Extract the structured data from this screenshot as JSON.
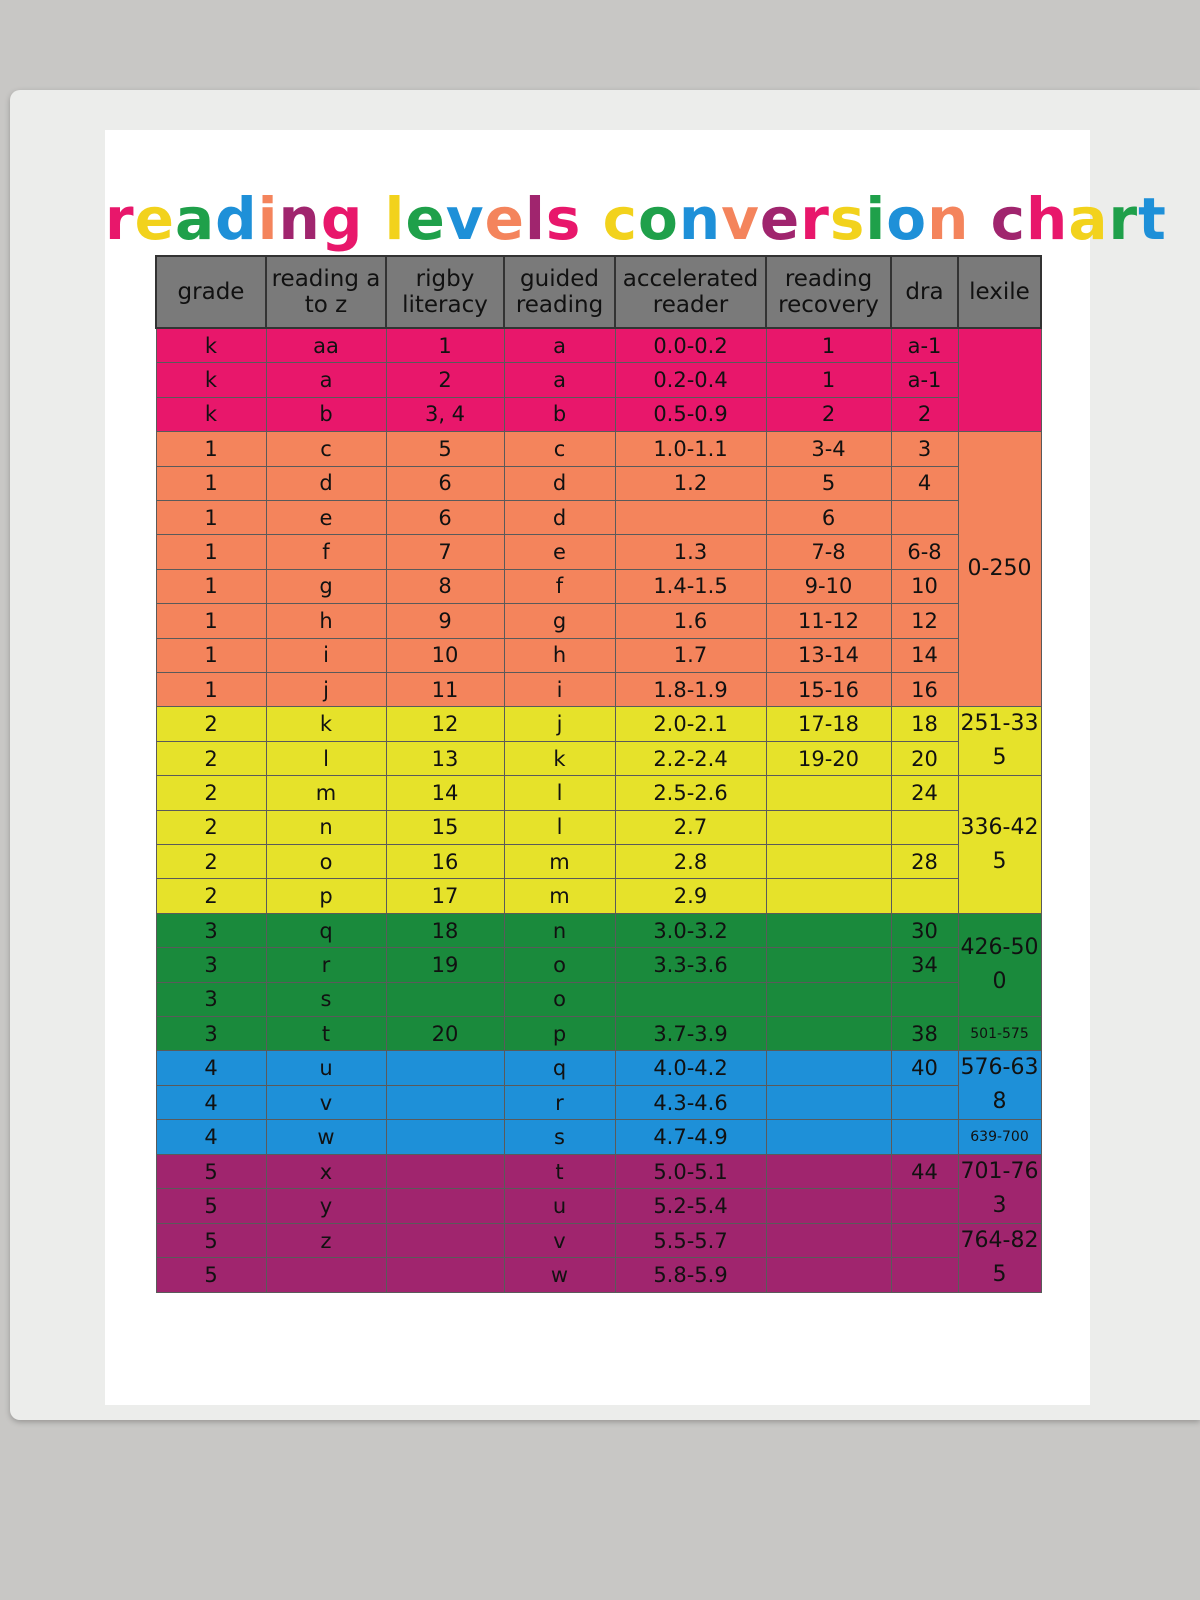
{
  "title": "reading levels conversion chart",
  "table": {
    "headers": [
      "grade",
      "reading a to z",
      "rigby literacy",
      "guided reading",
      "accelerated reader",
      "reading recovery",
      "dra",
      "lexile"
    ],
    "rows": [
      [
        "k",
        "aa",
        "1",
        "a",
        "0.0-0.2",
        "1",
        "a-1"
      ],
      [
        "k",
        "a",
        "2",
        "a",
        "0.2-0.4",
        "1",
        "a-1"
      ],
      [
        "k",
        "b",
        "3, 4",
        "b",
        "0.5-0.9",
        "2",
        "2"
      ],
      [
        "1",
        "c",
        "5",
        "c",
        "1.0-1.1",
        "3-4",
        "3"
      ],
      [
        "1",
        "d",
        "6",
        "d",
        "1.2",
        "5",
        "4"
      ],
      [
        "1",
        "e",
        "6",
        "d",
        null,
        "6",
        null
      ],
      [
        "1",
        "f",
        "7",
        "e",
        "1.3",
        "7-8",
        "6-8"
      ],
      [
        "1",
        "g",
        "8",
        "f",
        "1.4-1.5",
        "9-10",
        "10"
      ],
      [
        "1",
        "h",
        "9",
        "g",
        "1.6",
        "11-12",
        "12"
      ],
      [
        "1",
        "i",
        "10",
        "h",
        "1.7",
        "13-14",
        "14"
      ],
      [
        "1",
        "j",
        "11",
        "i",
        "1.8-1.9",
        "15-16",
        "16"
      ],
      [
        "2",
        "k",
        "12",
        "j",
        "2.0-2.1",
        "17-18",
        "18"
      ],
      [
        "2",
        "l",
        "13",
        "k",
        "2.2-2.4",
        "19-20",
        "20"
      ],
      [
        "2",
        "m",
        "14",
        "l",
        "2.5-2.6",
        null,
        "24"
      ],
      [
        "2",
        "n",
        "15",
        "l",
        "2.7",
        null,
        null
      ],
      [
        "2",
        "o",
        "16",
        "m",
        "2.8",
        null,
        "28"
      ],
      [
        "2",
        "p",
        "17",
        "m",
        "2.9",
        null,
        null
      ],
      [
        "3",
        "q",
        "18",
        "n",
        "3.0-3.2",
        null,
        "30"
      ],
      [
        "3",
        "r",
        "19",
        "o",
        "3.3-3.6",
        null,
        "34"
      ],
      [
        "3",
        "s",
        null,
        "o",
        null,
        null,
        null
      ],
      [
        "3",
        "t",
        "20",
        "p",
        "3.7-3.9",
        null,
        "38"
      ],
      [
        "4",
        "u",
        null,
        "q",
        "4.0-4.2",
        null,
        "40"
      ],
      [
        "4",
        "v",
        null,
        "r",
        "4.3-4.6",
        null,
        null
      ],
      [
        "4",
        "w",
        null,
        "s",
        "4.7-4.9",
        null,
        null
      ],
      [
        "5",
        "x",
        null,
        "t",
        "5.0-5.1",
        null,
        "44"
      ],
      [
        "5",
        "y",
        null,
        "u",
        "5.2-5.4",
        null,
        null
      ],
      [
        "5",
        "z",
        null,
        "v",
        "5.5-5.7",
        null,
        null
      ],
      [
        "5",
        null,
        null,
        "w",
        "5.8-5.9",
        null,
        null
      ]
    ],
    "lexile": [
      {
        "label": null,
        "span": 3
      },
      {
        "label": "0-250",
        "span": 8
      },
      {
        "label": "251-335",
        "span": 2
      },
      {
        "label": "336-425",
        "span": 4
      },
      {
        "label": "426-500",
        "span": 3
      },
      {
        "label": "501-575",
        "span": 1
      },
      {
        "label": "576-638",
        "span": 2
      },
      {
        "label": "639-700",
        "span": 1
      },
      {
        "label": "701-763",
        "span": 2
      },
      {
        "label": "764-825",
        "span": 2
      }
    ]
  }
}
